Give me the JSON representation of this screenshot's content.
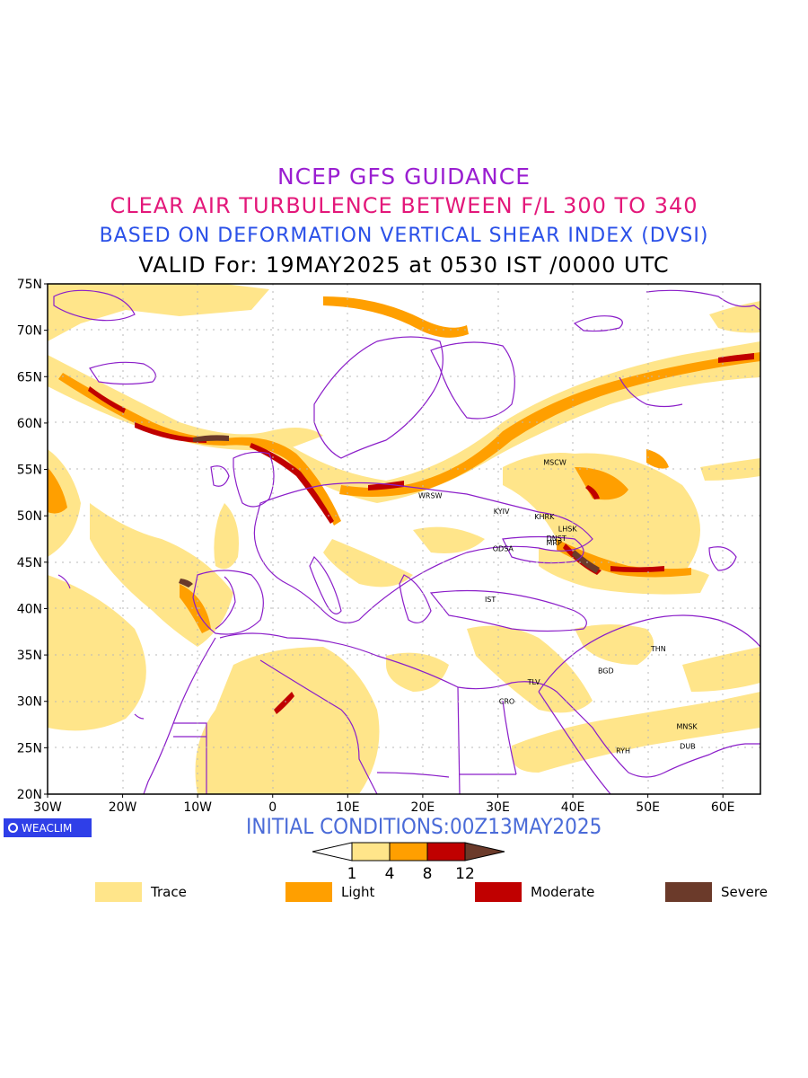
{
  "titles": {
    "line1": "NCEP GFS GUIDANCE",
    "line2": "CLEAR AIR TURBULENCE BETWEEN F/L 300 TO 340",
    "line3": "BASED ON DEFORMATION VERTICAL SHEAR INDEX (DVSI)",
    "line4": "VALID For: 19MAY2025 at 0530 IST /0000 UTC"
  },
  "map": {
    "lat_ticks": [
      "75N",
      "70N",
      "65N",
      "60N",
      "55N",
      "50N",
      "45N",
      "40N",
      "35N",
      "30N",
      "25N",
      "20N"
    ],
    "lon_ticks": [
      "30W",
      "20W",
      "10W",
      "0",
      "10E",
      "20E",
      "30E",
      "40E",
      "50E",
      "60E"
    ],
    "cities": [
      {
        "code": "MSCW",
        "lon": 37.6,
        "lat": 55.8
      },
      {
        "code": "WRSW",
        "lon": 21.0,
        "lat": 52.2
      },
      {
        "code": "KYIV",
        "lon": 30.5,
        "lat": 50.5
      },
      {
        "code": "KHRK",
        "lon": 36.2,
        "lat": 49.9
      },
      {
        "code": "LHSK",
        "lon": 39.3,
        "lat": 48.6
      },
      {
        "code": "DNST",
        "lon": 37.8,
        "lat": 47.6
      },
      {
        "code": "MRP",
        "lon": 37.5,
        "lat": 47.1
      },
      {
        "code": "ODSA",
        "lon": 30.7,
        "lat": 46.5
      },
      {
        "code": "IST",
        "lon": 29.0,
        "lat": 41.0
      },
      {
        "code": "THN",
        "lon": 51.4,
        "lat": 35.7
      },
      {
        "code": "BGD",
        "lon": 44.4,
        "lat": 33.3
      },
      {
        "code": "TLV",
        "lon": 34.8,
        "lat": 32.1
      },
      {
        "code": "CRO",
        "lon": 31.2,
        "lat": 30.0
      },
      {
        "code": "MNSK",
        "lon": 55.2,
        "lat": 27.3
      },
      {
        "code": "RYH",
        "lon": 46.7,
        "lat": 24.7
      },
      {
        "code": "DUB",
        "lon": 55.3,
        "lat": 25.2
      }
    ]
  },
  "badge": "WEACLIM",
  "initial_conditions": "INITIAL CONDITIONS:00Z13MAY2025",
  "colorbar": {
    "ticks": [
      "1",
      "4",
      "8",
      "12"
    ],
    "colors": [
      "#ffffff",
      "#ffe58a",
      "#ff9f00",
      "#c00000",
      "#6b3a2a"
    ]
  },
  "legend": [
    {
      "label": "Trace",
      "color": "#ffe58a"
    },
    {
      "label": "Light",
      "color": "#ff9f00"
    },
    {
      "label": "Moderate",
      "color": "#c00000"
    },
    {
      "label": "Severe",
      "color": "#6b3a2a"
    }
  ]
}
